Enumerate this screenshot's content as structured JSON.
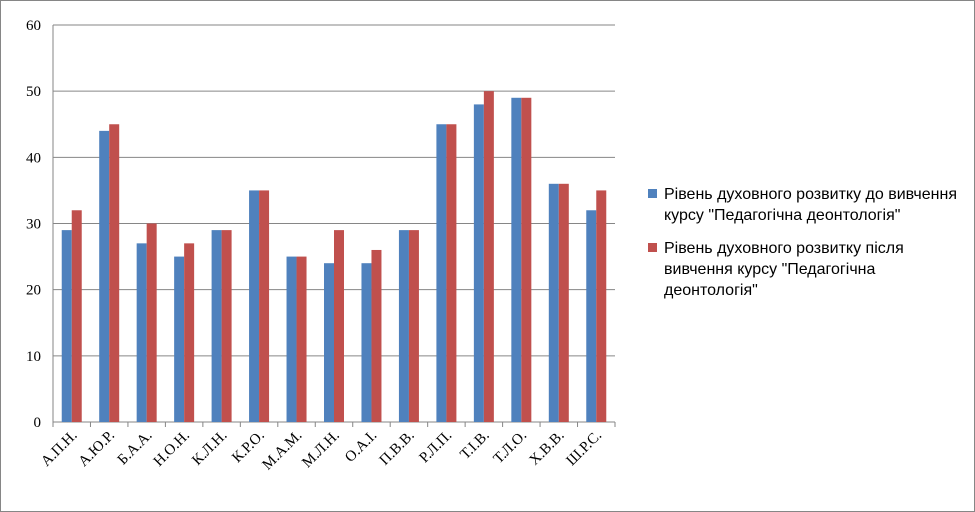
{
  "chart_data": {
    "type": "bar",
    "categories": [
      "А.П.Н.",
      "А.Ю.Р.",
      "Б.А.А.",
      "Н.О.Н.",
      "К.Л.Н.",
      "К.Р.О.",
      "М.А.М.",
      "М.Л.Н.",
      "О.А.І.",
      "П.В.В.",
      "Р.Л.П.",
      "Т.І.В.",
      "Т.Л.О.",
      "Х.В.В.",
      "Ш.Р.С."
    ],
    "series": [
      {
        "name": "Рівень духовного розвитку  до вивчення курсу  \"Педагогічна деонтологія\"",
        "color": "#4f81bd",
        "values": [
          29,
          44,
          27,
          25,
          29,
          35,
          25,
          24,
          24,
          29,
          45,
          48,
          49,
          36,
          32
        ]
      },
      {
        "name": "Рівень духовного розвитку  після вивчення курсу  \"Педагогічна деонтологія\"",
        "color": "#c0504d",
        "values": [
          32,
          45,
          30,
          27,
          29,
          35,
          25,
          29,
          26,
          29,
          45,
          50,
          49,
          36,
          35
        ]
      }
    ],
    "ylim": [
      0,
      60
    ],
    "yticks": [
      "0",
      "10",
      "20",
      "30",
      "40",
      "50",
      "60"
    ],
    "grid": true,
    "legend_position": "right",
    "title": "",
    "xlabel": "",
    "ylabel": ""
  }
}
